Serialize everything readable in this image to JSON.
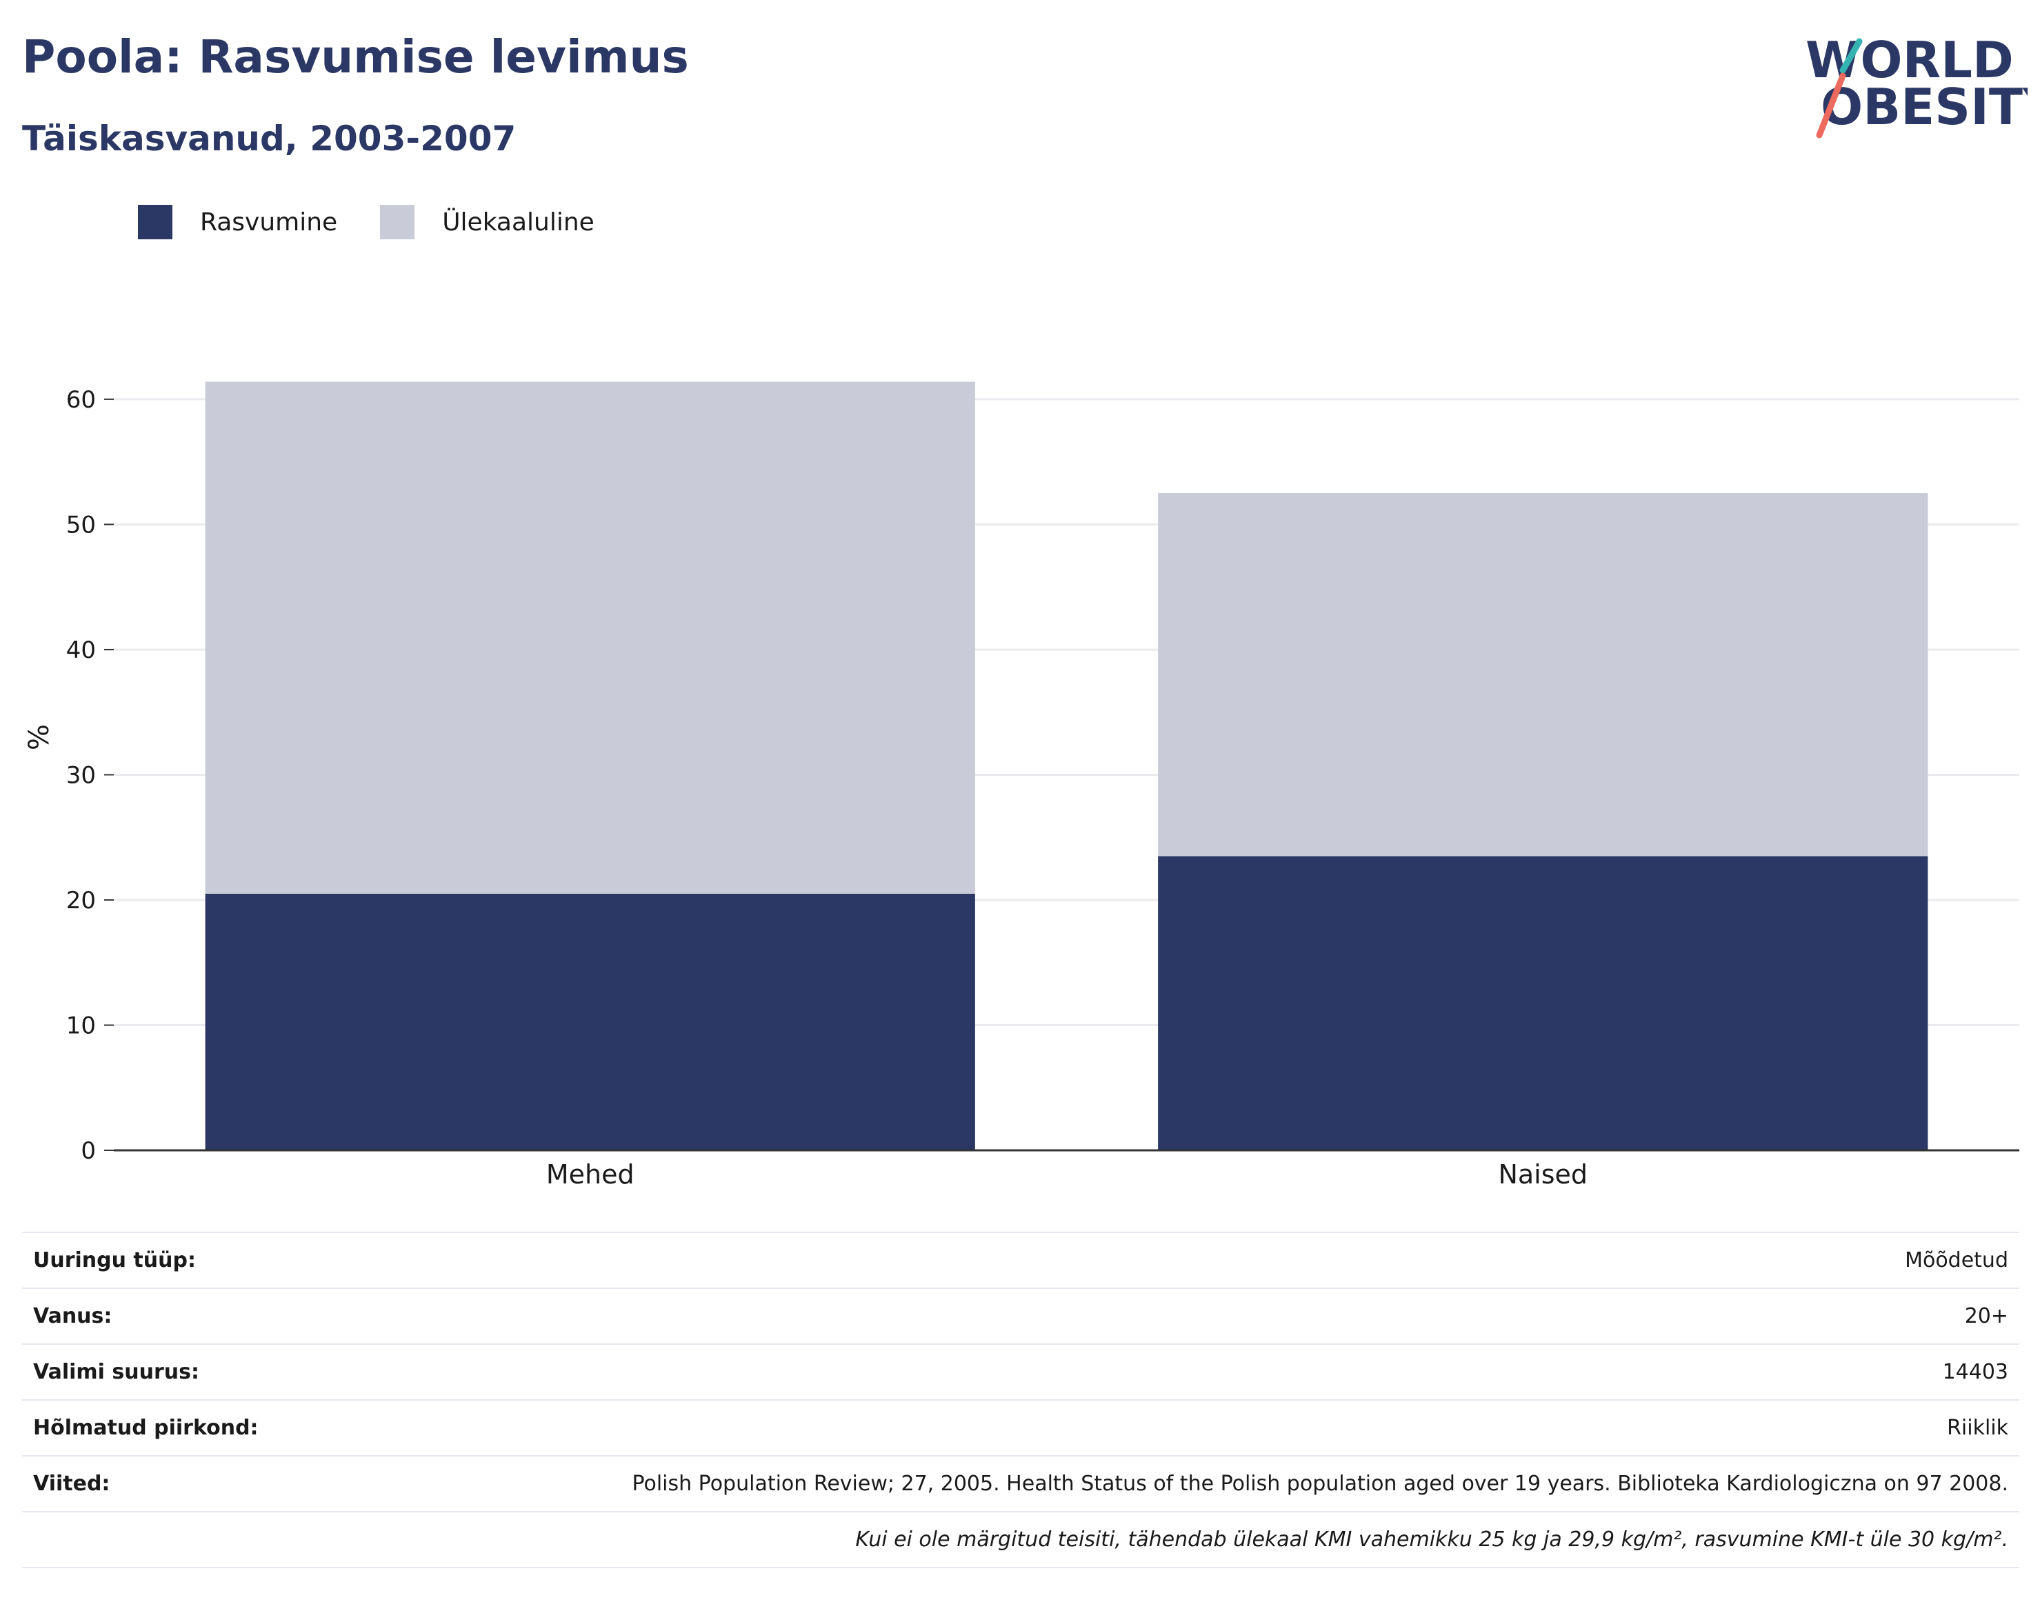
{
  "header": {
    "title": "Poola: Rasvumise levimus",
    "subtitle": "Täiskasvanud, 2003-2007"
  },
  "logo": {
    "line1": "WORLD",
    "line2": "OBESITY"
  },
  "colors": {
    "obesity": "#2b3866",
    "overweight": "#c9ccd8",
    "title": "#2b3866",
    "grid": "#ebebef",
    "axis": "#333333"
  },
  "legend": [
    {
      "label": "Rasvumine",
      "color": "#2b3866"
    },
    {
      "label": "Ülekaaluline",
      "color": "#c9ccd8"
    }
  ],
  "chart_data": {
    "type": "bar",
    "stacked": true,
    "categories": [
      "Mehed",
      "Naised"
    ],
    "series": [
      {
        "name": "Rasvumine",
        "values": [
          20.5,
          23.5
        ],
        "color": "#2b3866"
      },
      {
        "name": "Ülekaaluline",
        "values": [
          40.9,
          29.0
        ],
        "color": "#c9ccd8"
      }
    ],
    "ylabel": "%",
    "ylim": [
      0,
      66
    ],
    "yticks": [
      0,
      10,
      20,
      30,
      40,
      50,
      60
    ],
    "grid": true,
    "legend_position": "top-left"
  },
  "info_table": [
    {
      "label": "Uuringu tüüp:",
      "value": "Mõõdetud"
    },
    {
      "label": "Vanus:",
      "value": "20+"
    },
    {
      "label": "Valimi suurus:",
      "value": "14403"
    },
    {
      "label": "Hõlmatud piirkond:",
      "value": "Riiklik"
    },
    {
      "label": "Viited:",
      "value": "Polish Population Review; 27, 2005. Health Status of the Polish population aged over 19 years. Biblioteka Kardiologiczna on 97 2008."
    }
  ],
  "note": "Kui ei ole märgitud teisiti, tähendab ülekaal KMI vahemikku 25 kg ja 29,9 kg/m², rasvumine KMI-t üle 30 kg/m²."
}
